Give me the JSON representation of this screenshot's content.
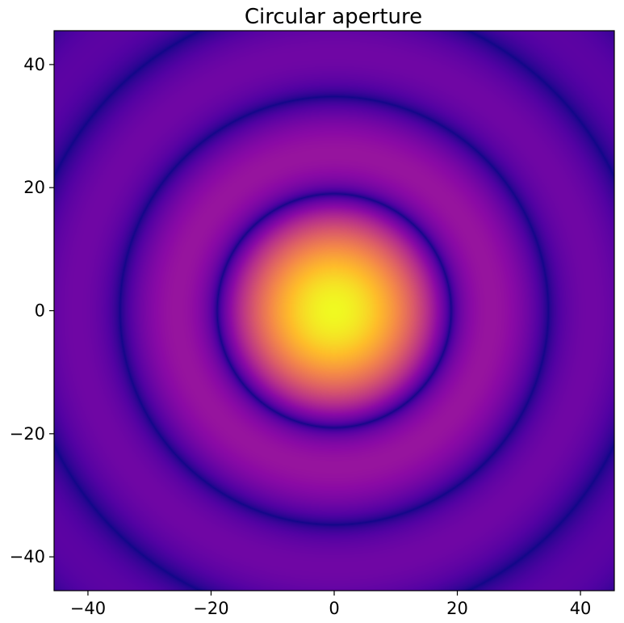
{
  "chart_data": {
    "type": "heatmap",
    "title": "Circular aperture",
    "xlabel": "",
    "ylabel": "",
    "xlim": [
      -45.5,
      45.5
    ],
    "ylim": [
      -45.5,
      45.5
    ],
    "x_ticks": [
      -40,
      -20,
      0,
      20,
      40
    ],
    "y_ticks": [
      -40,
      -20,
      0,
      20,
      40
    ],
    "x_tick_labels": [
      "−40",
      "−20",
      "0",
      "20",
      "40"
    ],
    "y_tick_labels": [
      "40",
      "20",
      "0",
      "−20",
      "−40"
    ],
    "grid": false,
    "legend": "none",
    "colormap": "plasma",
    "colormap_stops": [
      "#0d0887",
      "#5302a3",
      "#8b0aa5",
      "#b83289",
      "#db5c68",
      "#f48849",
      "#febc2a",
      "#f0f921"
    ],
    "pattern": "airy-disk",
    "center": [
      0,
      0
    ],
    "dark_ring_radii": [
      19,
      35,
      50
    ],
    "peak_intensity": 1.0
  }
}
